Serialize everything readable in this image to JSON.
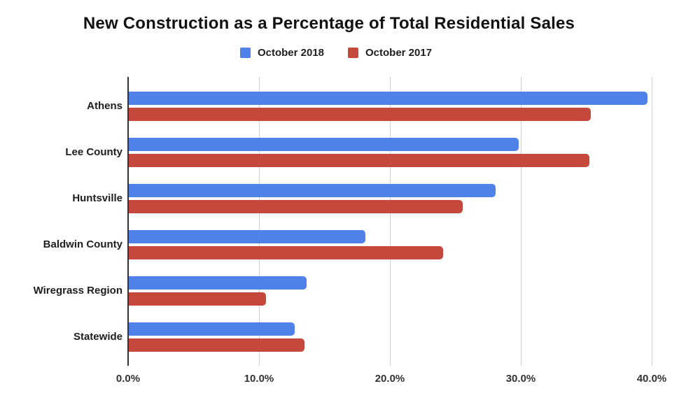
{
  "chart_data": {
    "type": "bar",
    "orientation": "horizontal",
    "title": "New Construction as a Percentage of Total Residential Sales",
    "categories": [
      "Athens",
      "Lee County",
      "Huntsville",
      "Baldwin County",
      "Wiregrass Region",
      "Statewide"
    ],
    "series": [
      {
        "name": "October 2018",
        "color": "#4f81e8",
        "values": [
          39.6,
          29.8,
          28.0,
          18.1,
          13.6,
          12.7
        ]
      },
      {
        "name": "October 2017",
        "color": "#c5483c",
        "values": [
          35.3,
          35.2,
          25.5,
          24.0,
          10.5,
          13.4
        ]
      }
    ],
    "value_suffix": "%",
    "xlim": [
      0,
      40
    ],
    "x_ticks": [
      0,
      10,
      20,
      30,
      40
    ],
    "x_tick_labels": [
      "0.0%",
      "10.0%",
      "20.0%",
      "30.0%",
      "40.0%"
    ],
    "grid": "vertical-on",
    "legend_position": "top-center",
    "colors": {
      "background": "#ffffff",
      "gridline": "#cfcfcf",
      "axis_baseline": "#333333",
      "title_text": "#111111",
      "label_text": "#1e1e1e"
    }
  }
}
